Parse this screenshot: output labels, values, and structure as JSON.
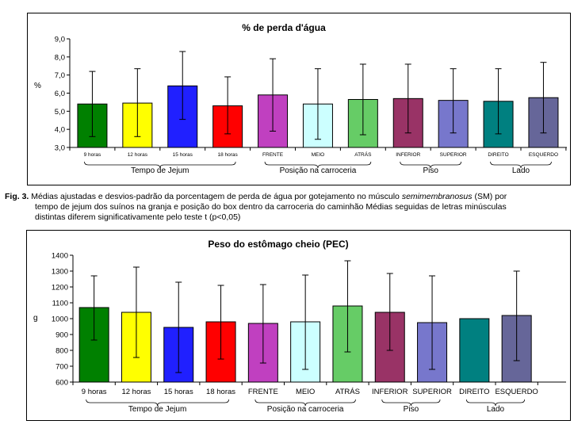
{
  "chart_data": [
    {
      "type": "bar",
      "title": "% de perda d'água",
      "ylabel": "%",
      "xlabel": "",
      "ylim": [
        3.0,
        9.0
      ],
      "yticks": [
        "3,0",
        "4,0",
        "5,0",
        "6,0",
        "7,0",
        "8,0",
        "9,0"
      ],
      "grid": false,
      "categories": [
        "9 horas",
        "12 horas",
        "15 horas",
        "18 horas",
        "FRENTE",
        "MEIO",
        "ATRÁS",
        "INFERIOR",
        "SUPERIOR",
        "DIREITO",
        "ESQUERDO"
      ],
      "values": [
        5.4,
        5.45,
        6.4,
        5.3,
        5.9,
        5.4,
        5.65,
        5.7,
        5.6,
        5.55,
        5.75
      ],
      "error_low": [
        3.6,
        3.6,
        4.55,
        3.75,
        3.9,
        3.45,
        3.7,
        3.8,
        3.8,
        3.75,
        3.8
      ],
      "error_high": [
        7.2,
        7.35,
        8.3,
        6.9,
        7.9,
        7.35,
        7.6,
        7.6,
        7.35,
        7.35,
        7.7
      ],
      "colors": [
        "#008000",
        "#ffff00",
        "#2020ff",
        "#ff0000",
        "#c040c0",
        "#ccffff",
        "#66cc66",
        "#993366",
        "#7777cc",
        "#008080",
        "#666699"
      ],
      "groups": [
        {
          "label": "Tempo de Jejum",
          "from": 0,
          "to": 3
        },
        {
          "label": "Posição na carroceria",
          "from": 4,
          "to": 6
        },
        {
          "label": "Piso",
          "from": 7,
          "to": 8
        },
        {
          "label": "Lado",
          "from": 9,
          "to": 10
        }
      ]
    },
    {
      "type": "bar",
      "title": "Peso do estômago cheio (PEC)",
      "ylabel": "g",
      "xlabel": "",
      "ylim": [
        600,
        1400
      ],
      "yticks": [
        "600",
        "700",
        "800",
        "900",
        "1000",
        "1100",
        "1200",
        "1300",
        "1400"
      ],
      "grid": false,
      "categories": [
        "9 horas",
        "12 horas",
        "15 horas",
        "18 horas",
        "FRENTE",
        "MEIO",
        "ATRÁS",
        "INFERIOR",
        "SUPERIOR",
        "DIREITO",
        "ESQUERDO"
      ],
      "values": [
        1070,
        1040,
        945,
        980,
        970,
        980,
        1080,
        1040,
        975,
        1000,
        1020
      ],
      "error_low": [
        865,
        755,
        660,
        745,
        720,
        680,
        790,
        800,
        680,
        null,
        735
      ],
      "error_high": [
        1270,
        1325,
        1230,
        1210,
        1215,
        1275,
        1365,
        1285,
        1270,
        null,
        1300
      ],
      "colors": [
        "#008000",
        "#ffff00",
        "#2020ff",
        "#ff0000",
        "#c040c0",
        "#ccffff",
        "#66cc66",
        "#993366",
        "#7777cc",
        "#008080",
        "#666699"
      ],
      "groups": [
        {
          "label": "Tempo de Jejum",
          "from": 0,
          "to": 3
        },
        {
          "label": "Posição na carroceria",
          "from": 4,
          "to": 6
        },
        {
          "label": "Piso",
          "from": 7,
          "to": 8
        },
        {
          "label": "Lado",
          "from": 9,
          "to": 10
        }
      ]
    }
  ],
  "caption": {
    "fig_label": "Fig. 3.",
    "line1_a": "Médias ajustadas e desvios-padrão da porcentagem de perda de água por gotejamento no músculo",
    "line1_em": "semimembranosus",
    "line1_b": "(SM) por",
    "line2": "tempo de jejum dos suínos na granja e posição do box dentro da carroceria do caminhão Médias seguidas de letras minúsculas",
    "line3": "distintas diferem significativamente pelo teste t (p<0,05)"
  }
}
